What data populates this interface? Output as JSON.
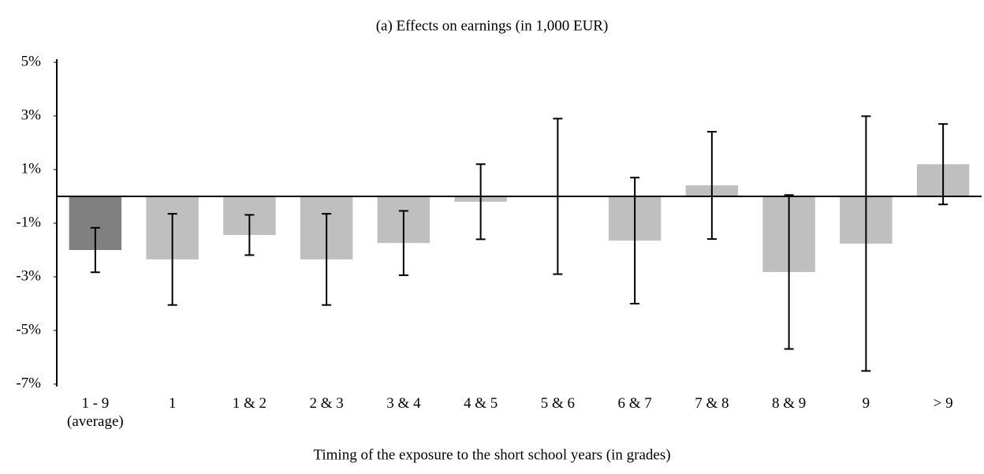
{
  "chart_data": {
    "type": "bar",
    "title": "(a) Effects on earnings (in 1,000 EUR)",
    "x_label": "Timing of the exposure to the short school years (in grades)",
    "categories": [
      "1 - 9 (average)",
      "1",
      "1 & 2",
      "2 & 3",
      "3 & 4",
      "4 & 5",
      "5 & 6",
      "6 & 7",
      "7 & 8",
      "8 & 9",
      "9",
      "> 9"
    ],
    "values": [
      -2.0,
      -2.35,
      -1.44,
      -2.35,
      -1.74,
      -0.2,
      0,
      -1.65,
      0.41,
      -2.82,
      -1.76,
      1.2
    ],
    "errors": [
      0.83,
      1.7,
      0.75,
      1.7,
      1.2,
      1.4,
      2.9,
      2.35,
      2.0,
      2.87,
      4.75,
      1.5
    ],
    "colors": [
      "#808080",
      "#bfbfbf",
      "#bfbfbf",
      "#bfbfbf",
      "#bfbfbf",
      "#bfbfbf",
      "#bfbfbf",
      "#bfbfbf",
      "#bfbfbf",
      "#bfbfbf",
      "#bfbfbf",
      "#bfbfbf"
    ],
    "ylim": [
      -7,
      5
    ],
    "yticks": [
      {
        "value": -7,
        "label": "-7%"
      },
      {
        "value": -5,
        "label": "-5%"
      },
      {
        "value": -3,
        "label": "-3%"
      },
      {
        "value": -1,
        "label": "-1%"
      },
      {
        "value": 1,
        "label": "1%"
      },
      {
        "value": 3,
        "label": "3%"
      },
      {
        "value": 5,
        "label": "5%"
      }
    ],
    "grid": false
  }
}
